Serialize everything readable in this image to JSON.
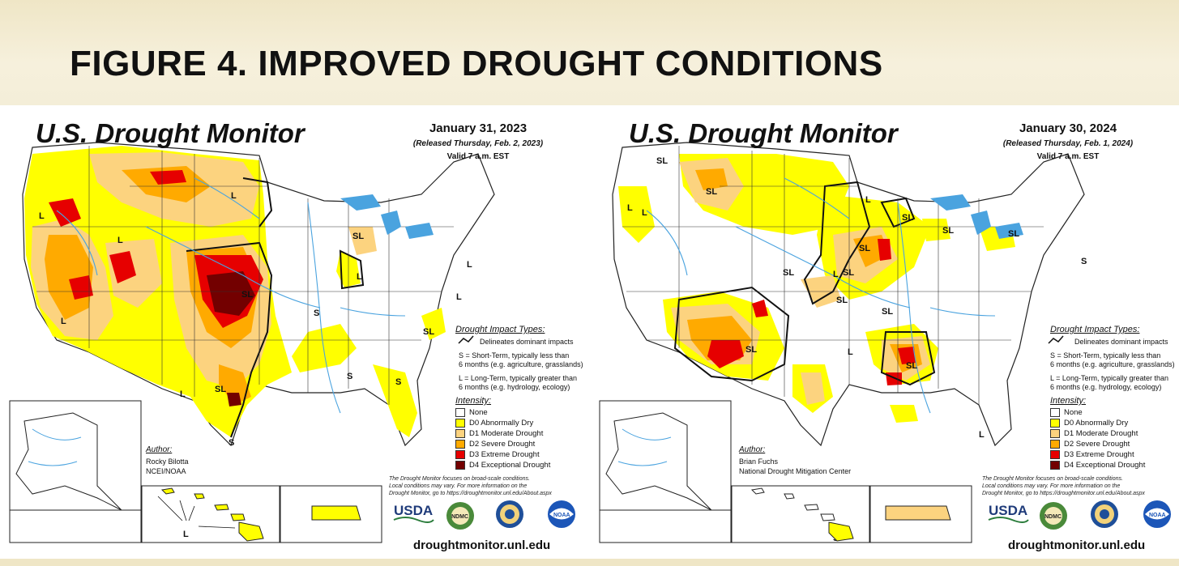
{
  "banner": {
    "title": "FIGURE 4. IMPROVED DROUGHT CONDITIONS"
  },
  "maps": [
    {
      "title": "U.S. Drought Monitor",
      "date": "January 31, 2023",
      "released": "(Released Thursday, Feb. 2, 2023)",
      "valid": "Valid 7 a.m. EST",
      "impact_types_title": "Drought Impact Types:",
      "impact_delineates": "Delineates dominant impacts",
      "impact_short_term": [
        "S = Short-Term, typically less than",
        "6 months (e.g. agriculture, grasslands)"
      ],
      "impact_long_term": [
        "L = Long-Term, typically greater than",
        "6 months (e.g. hydrology, ecology)"
      ],
      "intensity_title": "Intensity:",
      "intensity": [
        "None",
        "D0 Abnormally Dry",
        "D1 Moderate Drought",
        "D2 Severe Drought",
        "D3 Extreme Drought",
        "D4 Exceptional Drought"
      ],
      "author_label": "Author:",
      "author_lines": [
        "Rocky Bilotta",
        "NCEI/NOAA"
      ],
      "disclaimer": [
        "The Drought Monitor focuses on broad-scale conditions.",
        "Local conditions may vary. For more information on the",
        "Drought Monitor, go to https://droughtmonitor.unl.edu/About.aspx"
      ],
      "url": "droughtmonitor.unl.edu",
      "map_labels": [
        "L",
        "L",
        "L",
        "L",
        "L",
        "L",
        "L",
        "L",
        "SL",
        "SL",
        "SL",
        "SL",
        "S",
        "S",
        "S",
        "S",
        "L",
        "S"
      ]
    },
    {
      "title": "U.S. Drought Monitor",
      "date": "January 30, 2024",
      "released": "(Released Thursday, Feb. 1, 2024)",
      "valid": "Valid 7 a.m. EST",
      "impact_types_title": "Drought Impact Types:",
      "impact_delineates": "Delineates dominant impacts",
      "impact_short_term": [
        "S = Short-Term, typically less than",
        "6 months (e.g. agriculture, grasslands)"
      ],
      "impact_long_term": [
        "L = Long-Term, typically greater than",
        "6 months (e.g. hydrology, ecology)"
      ],
      "intensity_title": "Intensity:",
      "intensity": [
        "None",
        "D0 Abnormally Dry",
        "D1 Moderate Drought",
        "D2 Severe Drought",
        "D3 Extreme Drought",
        "D4 Exceptional Drought"
      ],
      "author_label": "Author:",
      "author_lines": [
        "Brian Fuchs",
        "National Drought Mitigation Center"
      ],
      "disclaimer": [
        "The Drought Monitor focuses on broad-scale conditions.",
        "Local conditions may vary. For more information on the",
        "Drought Monitor, go to https://droughtmonitor.unl.edu/About.aspx"
      ],
      "url": "droughtmonitor.unl.edu",
      "map_labels": [
        "SL",
        "SL",
        "L",
        "L",
        "L",
        "SL",
        "SL",
        "SL",
        "SL",
        "SL",
        "SL",
        "SL",
        "SL",
        "L",
        "SL",
        "L",
        "SL",
        "S",
        "L",
        "SL",
        "S"
      ]
    }
  ],
  "logos": {
    "usda": "USDA",
    "ndmc": "NDMC",
    "noaa": "NOAA"
  },
  "intensity_colors": {
    "none": "#ffffff",
    "d0": "#ffff00",
    "d1": "#fcd37f",
    "d2": "#ffaa00",
    "d3": "#e60000",
    "d4": "#730000"
  },
  "water_color": "#4aa3df"
}
